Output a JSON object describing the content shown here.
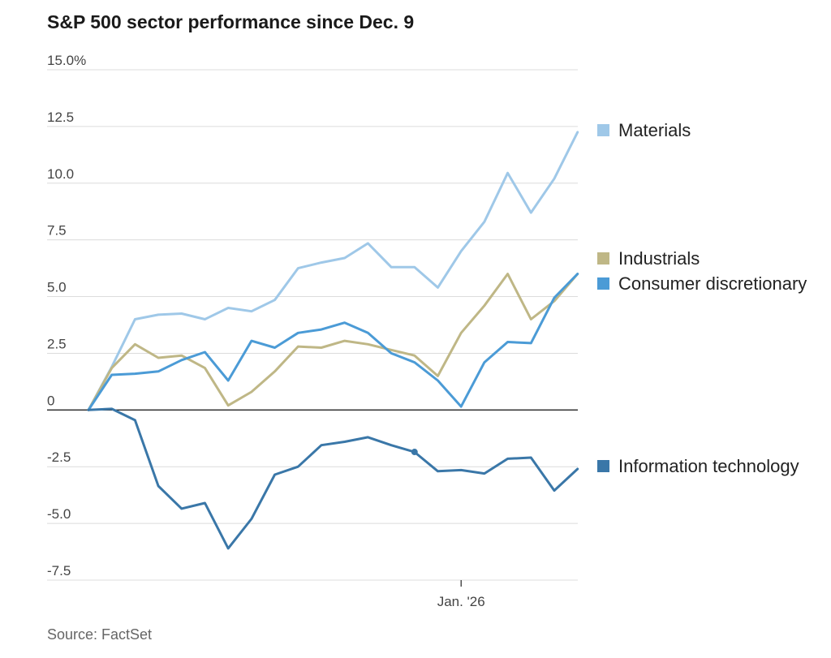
{
  "title": "S&P 500 sector performance since Dec. 9",
  "source": "Source: FactSet",
  "chart_data": {
    "type": "line",
    "title": "S&P 500 sector performance since Dec. 9",
    "xlabel": "",
    "ylabel": "",
    "ylim": [
      -7.5,
      15.0
    ],
    "yticks": [
      {
        "value": 15.0,
        "label": "15.0%"
      },
      {
        "value": 12.5,
        "label": "12.5"
      },
      {
        "value": 10.0,
        "label": "10.0"
      },
      {
        "value": 7.5,
        "label": "7.5"
      },
      {
        "value": 5.0,
        "label": "5.0"
      },
      {
        "value": 2.5,
        "label": "2.5"
      },
      {
        "value": 0,
        "label": "0"
      },
      {
        "value": -2.5,
        "label": "-2.5"
      },
      {
        "value": -5.0,
        "label": "-5.0"
      },
      {
        "value": -7.5,
        "label": "-7.5"
      }
    ],
    "xticks": [
      {
        "index": 16,
        "label": "Jan. '26"
      }
    ],
    "grid": true,
    "legend": "right",
    "series": [
      {
        "name": "Materials",
        "color": "#9fc8e8",
        "values": [
          0,
          1.9,
          4.0,
          4.2,
          4.25,
          4.0,
          4.5,
          4.35,
          4.85,
          6.25,
          6.5,
          6.7,
          7.35,
          6.3,
          6.3,
          5.4,
          7.0,
          8.3,
          10.45,
          8.7,
          10.2,
          12.25
        ]
      },
      {
        "name": "Industrials",
        "color": "#bfb786",
        "values": [
          0,
          1.85,
          2.9,
          2.3,
          2.4,
          1.85,
          0.2,
          0.8,
          1.7,
          2.8,
          2.75,
          3.05,
          2.9,
          2.65,
          2.4,
          1.5,
          3.4,
          4.6,
          6.0,
          4.0,
          4.8,
          6.0
        ]
      },
      {
        "name": "Consumer discretionary",
        "color": "#4b9bd6",
        "values": [
          0,
          1.55,
          1.6,
          1.7,
          2.2,
          2.55,
          1.3,
          3.05,
          2.75,
          3.4,
          3.55,
          3.85,
          3.4,
          2.5,
          2.1,
          1.3,
          0.15,
          2.1,
          3.0,
          2.95,
          4.95,
          6.0
        ]
      },
      {
        "name": "Information technology",
        "color": "#3a77a8",
        "values": [
          0,
          0.05,
          -0.45,
          -3.35,
          -4.35,
          -4.1,
          -6.1,
          -4.8,
          -2.85,
          -2.5,
          -1.55,
          -1.4,
          -1.2,
          -1.55,
          -1.85,
          -2.7,
          -2.65,
          -2.8,
          -2.15,
          -2.1,
          -3.55,
          -2.6
        ]
      }
    ],
    "annotations": [
      {
        "series": 3,
        "index": 14
      }
    ]
  }
}
